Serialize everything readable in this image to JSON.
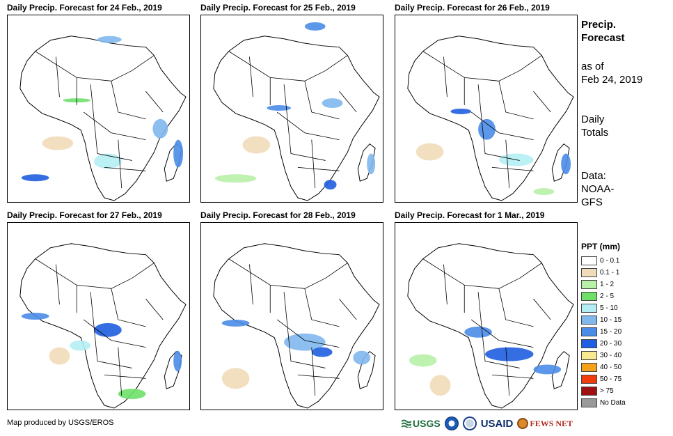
{
  "panels": [
    {
      "title": "Daily Precip. Forecast for 24 Feb., 2019"
    },
    {
      "title": "Daily Precip. Forecast for 25 Feb., 2019"
    },
    {
      "title": "Daily Precip. Forecast for 26 Feb., 2019"
    },
    {
      "title": "Daily Precip. Forecast for 27 Feb., 2019"
    },
    {
      "title": "Daily Precip. Forecast for 28 Feb., 2019"
    },
    {
      "title": "Daily Precip. Forecast for 1 Mar., 2019"
    }
  ],
  "side": {
    "title_line1": "Precip.",
    "title_line2": "Forecast",
    "asof_line1": "as of",
    "asof_line2": "Feb 24, 2019",
    "totals_line1": "Daily",
    "totals_line2": "Totals",
    "data_line1": "Data:",
    "data_line2": "NOAA-",
    "data_line3": "GFS"
  },
  "legend": {
    "title": "PPT (mm)",
    "items": [
      {
        "label": "0 - 0.1",
        "color": "#ffffff"
      },
      {
        "label": "0.1 - 1",
        "color": "#f0dcb8"
      },
      {
        "label": "1 - 2",
        "color": "#b8f0a8"
      },
      {
        "label": "2 - 5",
        "color": "#6ee06a"
      },
      {
        "label": "5 - 10",
        "color": "#b4eef4"
      },
      {
        "label": "10 - 15",
        "color": "#80b8ee"
      },
      {
        "label": "15 - 20",
        "color": "#4a8ce8"
      },
      {
        "label": "20 - 30",
        "color": "#1f5ee0"
      },
      {
        "label": "30 - 40",
        "color": "#f8e890"
      },
      {
        "label": "40 - 50",
        "color": "#f4a21c"
      },
      {
        "label": "50 - 75",
        "color": "#f03c0c"
      },
      {
        "label": "> 75",
        "color": "#a01010"
      },
      {
        "label": "No Data",
        "color": "#999999"
      }
    ]
  },
  "footer": {
    "credit": "Map produced by USGS/EROS"
  },
  "logos": {
    "usgs": "USGS",
    "usaid": "USAID",
    "fews": "FEWS NET"
  }
}
